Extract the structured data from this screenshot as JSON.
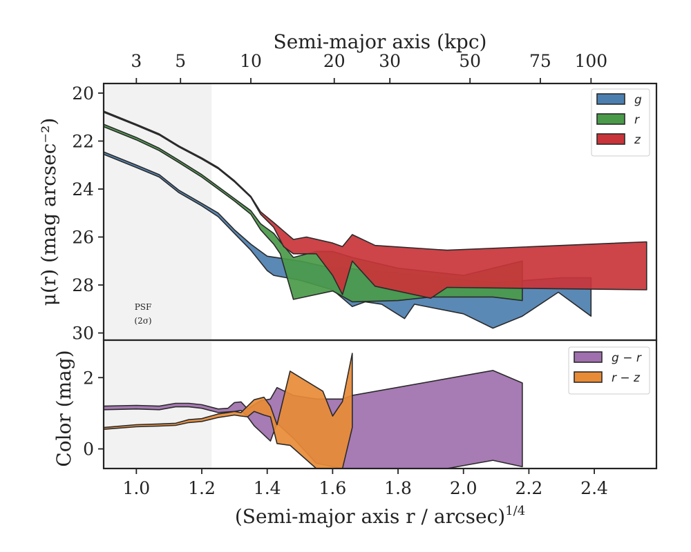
{
  "chart_data": [
    {
      "type": "area",
      "panel": "surface-brightness",
      "ylabel": "μ(r) (mag arcsec⁻²)",
      "xlim": [
        0.9,
        2.59
      ],
      "ylim": [
        30.3,
        19.6
      ],
      "y_inverted": true,
      "yticks": [
        20,
        22,
        24,
        26,
        28,
        30
      ],
      "top_axis": {
        "label": "Semi-major axis (kpc)",
        "ticks": [
          {
            "label": "3",
            "x": 1.0
          },
          {
            "label": "5",
            "x": 1.135
          },
          {
            "label": "10",
            "x": 1.35
          },
          {
            "label": "20",
            "x": 1.605
          },
          {
            "label": "30",
            "x": 1.775
          },
          {
            "label": "50",
            "x": 2.02
          },
          {
            "label": "75",
            "x": 2.235
          },
          {
            "label": "100",
            "x": 2.39
          }
        ]
      },
      "shaded_region": {
        "x": [
          0.9,
          1.23
        ],
        "label": "PSF",
        "sublabel": "(2σ)"
      },
      "legend": {
        "position": "top-right",
        "entries": [
          "g",
          "r",
          "z"
        ]
      },
      "series": [
        {
          "name": "g",
          "color": "#4c7fb0",
          "upper": [
            [
              0.9,
              22.45
            ],
            [
              1.0,
              23.0
            ],
            [
              1.07,
              23.4
            ],
            [
              1.13,
              24.05
            ],
            [
              1.2,
              24.6
            ],
            [
              1.25,
              25.0
            ],
            [
              1.3,
              25.7
            ],
            [
              1.35,
              26.3
            ],
            [
              1.4,
              26.8
            ],
            [
              1.45,
              26.9
            ],
            [
              1.5,
              27.0
            ],
            [
              1.6,
              27.3
            ],
            [
              1.65,
              27.3
            ],
            [
              1.7,
              27.4
            ],
            [
              1.8,
              27.5
            ],
            [
              2.0,
              27.8
            ],
            [
              2.1,
              27.9
            ],
            [
              2.2,
              27.8
            ],
            [
              2.3,
              27.7
            ],
            [
              2.39,
              27.7
            ]
          ],
          "lower": [
            [
              0.9,
              22.55
            ],
            [
              1.0,
              23.1
            ],
            [
              1.07,
              23.5
            ],
            [
              1.13,
              24.15
            ],
            [
              1.2,
              24.7
            ],
            [
              1.25,
              25.15
            ],
            [
              1.3,
              25.85
            ],
            [
              1.35,
              26.55
            ],
            [
              1.4,
              27.4
            ],
            [
              1.42,
              27.6
            ],
            [
              1.5,
              27.8
            ],
            [
              1.6,
              28.2
            ],
            [
              1.66,
              28.9
            ],
            [
              1.7,
              28.7
            ],
            [
              1.75,
              28.8
            ],
            [
              1.82,
              29.4
            ],
            [
              1.85,
              28.8
            ],
            [
              2.0,
              29.2
            ],
            [
              2.09,
              29.8
            ],
            [
              2.18,
              29.3
            ],
            [
              2.29,
              28.3
            ],
            [
              2.39,
              29.3
            ]
          ]
        },
        {
          "name": "r",
          "color": "#4a9a4a",
          "upper": [
            [
              0.9,
              21.3
            ],
            [
              1.0,
              21.85
            ],
            [
              1.07,
              22.3
            ],
            [
              1.13,
              22.8
            ],
            [
              1.2,
              23.4
            ],
            [
              1.25,
              23.9
            ],
            [
              1.3,
              24.4
            ],
            [
              1.35,
              24.9
            ],
            [
              1.38,
              25.45
            ],
            [
              1.42,
              25.85
            ],
            [
              1.44,
              26.2
            ],
            [
              1.48,
              26.85
            ],
            [
              1.55,
              26.6
            ],
            [
              1.6,
              26.6
            ],
            [
              1.66,
              26.85
            ],
            [
              1.8,
              27.3
            ],
            [
              2.0,
              27.6
            ],
            [
              2.18,
              27.0
            ]
          ],
          "lower": [
            [
              0.9,
              21.4
            ],
            [
              1.0,
              21.95
            ],
            [
              1.07,
              22.4
            ],
            [
              1.13,
              22.9
            ],
            [
              1.2,
              23.5
            ],
            [
              1.25,
              24.0
            ],
            [
              1.3,
              24.5
            ],
            [
              1.35,
              25.05
            ],
            [
              1.38,
              25.7
            ],
            [
              1.42,
              26.3
            ],
            [
              1.44,
              26.7
            ],
            [
              1.48,
              28.6
            ],
            [
              1.6,
              28.25
            ],
            [
              1.66,
              28.7
            ],
            [
              1.8,
              28.65
            ],
            [
              1.9,
              28.5
            ],
            [
              2.09,
              28.5
            ],
            [
              2.18,
              28.65
            ]
          ]
        },
        {
          "name": "z",
          "color": "#c9343a",
          "upper": [
            [
              0.9,
              20.75
            ],
            [
              1.0,
              21.3
            ],
            [
              1.07,
              21.7
            ],
            [
              1.13,
              22.2
            ],
            [
              1.2,
              22.7
            ],
            [
              1.25,
              23.1
            ],
            [
              1.3,
              23.65
            ],
            [
              1.35,
              24.3
            ],
            [
              1.38,
              24.95
            ],
            [
              1.42,
              25.4
            ],
            [
              1.45,
              25.75
            ],
            [
              1.48,
              26.1
            ],
            [
              1.52,
              26.0
            ],
            [
              1.6,
              26.25
            ],
            [
              1.63,
              26.4
            ],
            [
              1.66,
              25.9
            ],
            [
              1.73,
              26.35
            ],
            [
              1.95,
              26.55
            ],
            [
              2.56,
              26.2
            ]
          ],
          "lower": [
            [
              0.9,
              20.8
            ],
            [
              1.0,
              21.35
            ],
            [
              1.07,
              21.75
            ],
            [
              1.13,
              22.25
            ],
            [
              1.2,
              22.75
            ],
            [
              1.25,
              23.15
            ],
            [
              1.3,
              23.7
            ],
            [
              1.35,
              24.35
            ],
            [
              1.38,
              25.05
            ],
            [
              1.42,
              25.6
            ],
            [
              1.45,
              26.4
            ],
            [
              1.48,
              26.7
            ],
            [
              1.55,
              26.7
            ],
            [
              1.6,
              27.6
            ],
            [
              1.63,
              28.4
            ],
            [
              1.66,
              27.0
            ],
            [
              1.73,
              28.05
            ],
            [
              1.9,
              28.55
            ],
            [
              1.95,
              28.1
            ],
            [
              2.56,
              28.2
            ]
          ]
        }
      ]
    },
    {
      "type": "area",
      "panel": "color-profile",
      "ylabel": "Color (mag)",
      "xlabel": "(Semi-major axis r / arcsec)",
      "xlabel_superscript": "1/4",
      "xlim": [
        0.9,
        2.59
      ],
      "ylim": [
        -0.55,
        3.05
      ],
      "yticks": [
        0,
        2
      ],
      "xticks": [
        1.0,
        1.2,
        1.4,
        1.6,
        1.8,
        2.0,
        2.2,
        2.4
      ],
      "xtick_labels": [
        "1.0",
        "1.2",
        "1.4",
        "1.6",
        "1.8",
        "2.0",
        "2.2",
        "2.4"
      ],
      "legend": {
        "position": "top-right",
        "entries": [
          "g − r",
          "r − z"
        ]
      },
      "series": [
        {
          "name": "g − r",
          "color": "#a070ae",
          "upper": [
            [
              0.9,
              1.2
            ],
            [
              1.0,
              1.22
            ],
            [
              1.07,
              1.2
            ],
            [
              1.12,
              1.28
            ],
            [
              1.16,
              1.28
            ],
            [
              1.2,
              1.24
            ],
            [
              1.25,
              1.12
            ],
            [
              1.28,
              1.14
            ],
            [
              1.3,
              1.3
            ],
            [
              1.32,
              1.32
            ],
            [
              1.34,
              1.12
            ],
            [
              1.38,
              1.35
            ],
            [
              1.41,
              1.4
            ],
            [
              1.43,
              1.72
            ],
            [
              1.48,
              1.5
            ],
            [
              1.55,
              1.4
            ],
            [
              1.63,
              1.4
            ],
            [
              1.66,
              1.5
            ],
            [
              2.09,
              2.2
            ],
            [
              2.18,
              1.85
            ]
          ],
          "lower": [
            [
              0.9,
              1.1
            ],
            [
              1.0,
              1.12
            ],
            [
              1.07,
              1.1
            ],
            [
              1.12,
              1.18
            ],
            [
              1.16,
              1.18
            ],
            [
              1.2,
              1.14
            ],
            [
              1.25,
              1.02
            ],
            [
              1.28,
              1.04
            ],
            [
              1.3,
              1.05
            ],
            [
              1.32,
              1.08
            ],
            [
              1.34,
              0.9
            ],
            [
              1.36,
              0.65
            ],
            [
              1.38,
              0.48
            ],
            [
              1.41,
              0.22
            ],
            [
              1.43,
              0.72
            ],
            [
              1.48,
              0.3
            ],
            [
              1.5,
              0.1
            ],
            [
              1.55,
              -0.4
            ],
            [
              1.63,
              -0.55
            ],
            [
              1.66,
              -0.55
            ],
            [
              1.95,
              -0.55
            ],
            [
              2.09,
              -0.32
            ],
            [
              2.18,
              -0.5
            ]
          ]
        },
        {
          "name": "r − z",
          "color": "#e88b37",
          "upper": [
            [
              0.9,
              0.6
            ],
            [
              1.0,
              0.68
            ],
            [
              1.07,
              0.7
            ],
            [
              1.12,
              0.72
            ],
            [
              1.16,
              0.82
            ],
            [
              1.2,
              0.85
            ],
            [
              1.25,
              0.98
            ],
            [
              1.28,
              1.02
            ],
            [
              1.3,
              1.05
            ],
            [
              1.32,
              1.02
            ],
            [
              1.34,
              1.2
            ],
            [
              1.36,
              1.38
            ],
            [
              1.39,
              1.45
            ],
            [
              1.41,
              1.2
            ],
            [
              1.43,
              0.68
            ],
            [
              1.47,
              2.18
            ],
            [
              1.57,
              1.62
            ],
            [
              1.6,
              0.92
            ],
            [
              1.63,
              1.33
            ],
            [
              1.66,
              2.68
            ]
          ],
          "lower": [
            [
              0.9,
              0.55
            ],
            [
              1.0,
              0.62
            ],
            [
              1.07,
              0.64
            ],
            [
              1.12,
              0.66
            ],
            [
              1.16,
              0.74
            ],
            [
              1.2,
              0.77
            ],
            [
              1.25,
              0.88
            ],
            [
              1.28,
              0.92
            ],
            [
              1.3,
              0.95
            ],
            [
              1.32,
              0.92
            ],
            [
              1.34,
              0.9
            ],
            [
              1.36,
              1.05
            ],
            [
              1.39,
              0.95
            ],
            [
              1.41,
              0.9
            ],
            [
              1.43,
              0.15
            ],
            [
              1.47,
              0.1
            ],
            [
              1.55,
              -0.55
            ],
            [
              1.6,
              -0.55
            ],
            [
              1.63,
              -0.55
            ],
            [
              1.66,
              0.6
            ]
          ]
        }
      ]
    }
  ]
}
